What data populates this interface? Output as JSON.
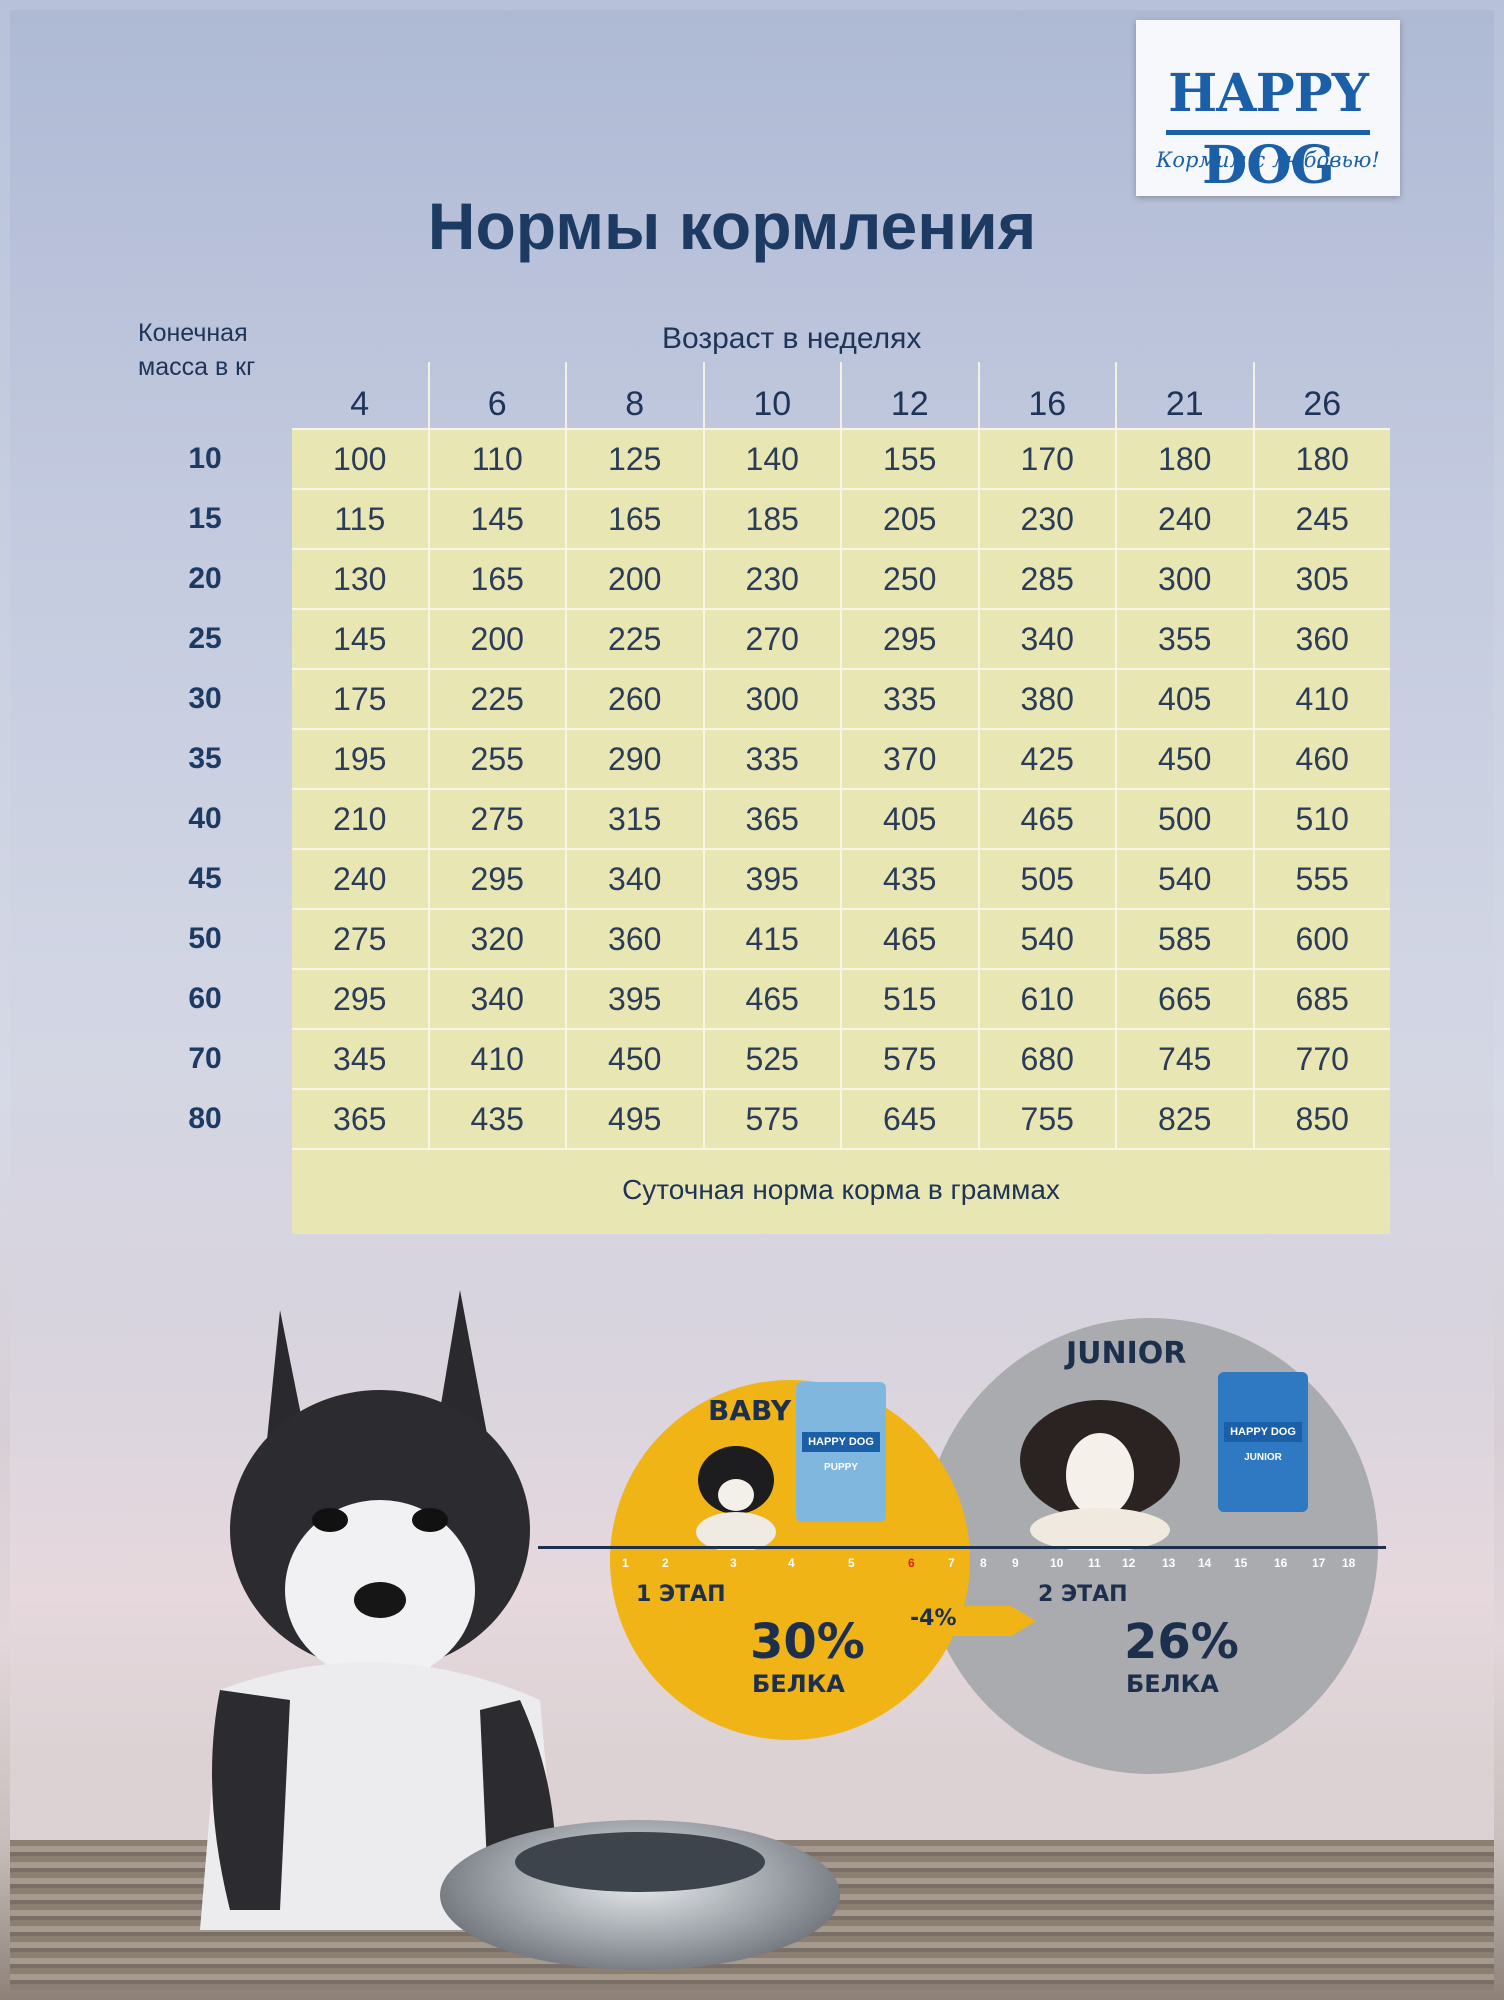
{
  "logo": {
    "brand": "HAPPY DOG",
    "slogan": "Кормим с любовью!"
  },
  "title": "Нормы кормления",
  "table": {
    "mass_label": "Конечная масса в кг",
    "age_label": "Возраст в неделях",
    "weeks": [
      "4",
      "6",
      "8",
      "10",
      "12",
      "16",
      "21",
      "26"
    ],
    "weights": [
      "10",
      "15",
      "20",
      "25",
      "30",
      "35",
      "40",
      "45",
      "50",
      "60",
      "70",
      "80"
    ],
    "rows": [
      [
        "100",
        "110",
        "125",
        "140",
        "155",
        "170",
        "180",
        "180"
      ],
      [
        "115",
        "145",
        "165",
        "185",
        "205",
        "230",
        "240",
        "245"
      ],
      [
        "130",
        "165",
        "200",
        "230",
        "250",
        "285",
        "300",
        "305"
      ],
      [
        "145",
        "200",
        "225",
        "270",
        "295",
        "340",
        "355",
        "360"
      ],
      [
        "175",
        "225",
        "260",
        "300",
        "335",
        "380",
        "405",
        "410"
      ],
      [
        "195",
        "255",
        "290",
        "335",
        "370",
        "425",
        "450",
        "460"
      ],
      [
        "210",
        "275",
        "315",
        "365",
        "405",
        "465",
        "500",
        "510"
      ],
      [
        "240",
        "295",
        "340",
        "395",
        "435",
        "505",
        "540",
        "555"
      ],
      [
        "275",
        "320",
        "360",
        "415",
        "465",
        "540",
        "585",
        "600"
      ],
      [
        "295",
        "340",
        "395",
        "465",
        "515",
        "610",
        "665",
        "685"
      ],
      [
        "345",
        "410",
        "450",
        "525",
        "575",
        "680",
        "745",
        "770"
      ],
      [
        "365",
        "435",
        "495",
        "575",
        "645",
        "755",
        "825",
        "850"
      ]
    ],
    "footer": "Суточная норма корма в граммах"
  },
  "stages": {
    "baby": {
      "label": "BABY",
      "stage": "1 ЭТАП",
      "percent": "30%",
      "protein": "БЕЛКА",
      "pack": "PUPPY"
    },
    "junior": {
      "label": "JUNIOR",
      "stage": "2 ЭТАП",
      "percent": "26%",
      "protein": "БЕЛКА",
      "pack": "JUNIOR"
    },
    "diff": "-4%",
    "months": [
      "1",
      "2",
      "3",
      "4",
      "5",
      "6",
      "7",
      "8",
      "9",
      "10",
      "11",
      "12",
      "13",
      "14",
      "15",
      "16",
      "17",
      "18"
    ]
  },
  "colors": {
    "navy": "#1c3a62",
    "yellow": "#f0b416",
    "grey": "#a9abaf",
    "table": "#e8e6b2",
    "brand_blue": "#1a5fa8"
  }
}
